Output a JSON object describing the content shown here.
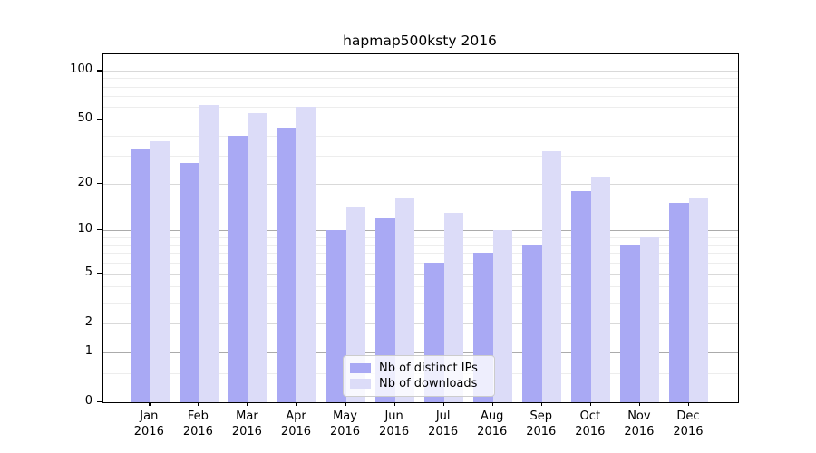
{
  "chart_data": {
    "type": "bar",
    "title": "hapmap500ksty 2016",
    "categories": [
      "Jan",
      "Feb",
      "Mar",
      "Apr",
      "May",
      "Jun",
      "Jul",
      "Aug",
      "Sep",
      "Oct",
      "Nov",
      "Dec"
    ],
    "year_label": "2016",
    "series": [
      {
        "name": "Nb of distinct IPs",
        "color": "#a9a9f4",
        "values": [
          33,
          27,
          40,
          45,
          10,
          12,
          6,
          7,
          8,
          18,
          8,
          15
        ]
      },
      {
        "name": "Nb of downloads",
        "color": "#dcdcf8",
        "values": [
          37,
          62,
          55,
          60,
          14,
          16,
          13,
          10,
          32,
          22,
          9,
          16
        ]
      }
    ],
    "xlabel": "",
    "ylabel": "",
    "yscale": "log1p",
    "ylim": [
      0,
      128
    ],
    "ytick_labels": [
      "0",
      "1",
      "2",
      "5",
      "10",
      "20",
      "50",
      "100"
    ],
    "yticks": [
      0,
      1,
      2,
      5,
      10,
      20,
      50,
      100
    ],
    "yticks_emphasized": [
      1,
      10
    ],
    "yticks_minor": [
      0.5,
      3,
      4,
      6,
      7,
      8,
      9,
      30,
      40,
      60,
      70,
      80,
      90
    ],
    "grid": "horizontal",
    "legend_position": "lower center"
  }
}
